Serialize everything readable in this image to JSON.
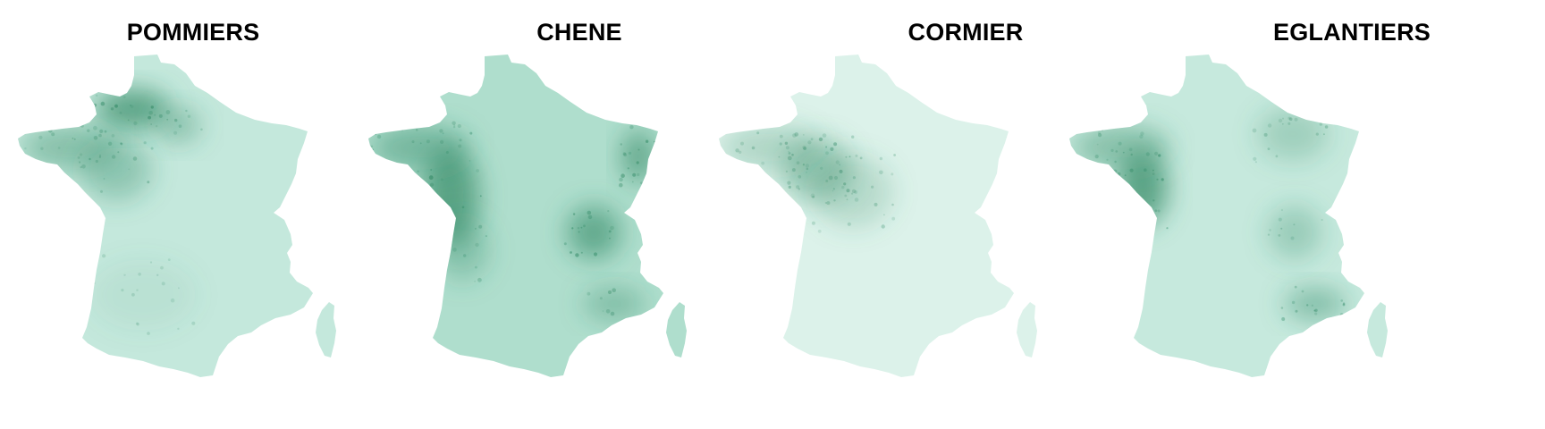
{
  "colors": {
    "background": "#ffffff",
    "low": "#dff3ec",
    "mid": "#a7d9c5",
    "high": "#2f8763",
    "title": "#000000"
  },
  "maps": [
    {
      "title": "POMMIERS",
      "base_color": "#c4e8dc",
      "hotspots": [
        {
          "region": "Normandie (Manche)",
          "intensity": 0.95
        },
        {
          "region": "Bretagne",
          "intensity": 0.55
        },
        {
          "region": "Pays de la Loire",
          "intensity": 0.45
        },
        {
          "region": "Ile-de-France nord",
          "intensity": 0.5
        },
        {
          "region": "Sud-Ouest",
          "intensity": 0.1
        }
      ]
    },
    {
      "title": "CHENE",
      "base_color": "#afdecd",
      "hotspots": [
        {
          "region": "Vendee / Charente",
          "intensity": 0.9
        },
        {
          "region": "Bretagne",
          "intensity": 0.6
        },
        {
          "region": "Alsace",
          "intensity": 0.85
        },
        {
          "region": "Rhone-Alpes",
          "intensity": 0.8
        },
        {
          "region": "Provence",
          "intensity": 0.5
        },
        {
          "region": "Aquitaine",
          "intensity": 0.4
        }
      ]
    },
    {
      "title": "CORMIER",
      "base_color": "#dcf2ea",
      "hotspots": [
        {
          "region": "Pays de la Loire",
          "intensity": 0.55
        },
        {
          "region": "Bretagne",
          "intensity": 0.35
        },
        {
          "region": "Centre",
          "intensity": 0.3
        }
      ]
    },
    {
      "title": "EGLANTIERS",
      "base_color": "#c6e9dd",
      "hotspots": [
        {
          "region": "Vendee",
          "intensity": 0.95
        },
        {
          "region": "Bretagne",
          "intensity": 0.55
        },
        {
          "region": "Provence",
          "intensity": 0.6
        },
        {
          "region": "Rhone-Alpes",
          "intensity": 0.4
        },
        {
          "region": "Nord-Est",
          "intensity": 0.35
        }
      ]
    }
  ]
}
